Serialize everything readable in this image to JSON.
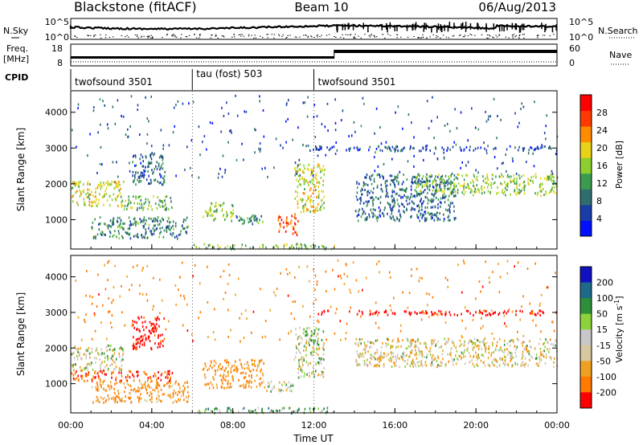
{
  "header": {
    "station": "Blackstone (fitACF)",
    "beam": "Beam 10",
    "date": "06/Aug/2013"
  },
  "top_panels": {
    "nsky_label": "N.Sky",
    "nsearch_label": "N.Search",
    "freq_label_1": "Freq.",
    "freq_label_2": "[MHz]",
    "nave_label": "Nave",
    "cpid_label": "CPID",
    "log_ticks_left": [
      "10^5",
      "10^0"
    ],
    "log_ticks_right": [
      "10^5",
      "10^0"
    ],
    "freq_ticks": [
      "18",
      "8"
    ],
    "nave_ticks": [
      "60",
      "0"
    ]
  },
  "cpid_segments": [
    {
      "start_hour": 0.0,
      "end_hour": 6.0,
      "label": "twofsound 3501"
    },
    {
      "start_hour": 6.0,
      "end_hour": 12.0,
      "label": "tau (fost) 503"
    },
    {
      "start_hour": 12.0,
      "end_hour": 24.0,
      "label": "twofsound 3501"
    }
  ],
  "chart_data": [
    {
      "type": "heatmap",
      "name": "power",
      "xlabel": "Time UT",
      "ylabel": "Slant Range [km]",
      "xlim": [
        0,
        24
      ],
      "ylim": [
        180,
        4600
      ],
      "x_ticks": [
        "00:00",
        "04:00",
        "08:00",
        "12:00",
        "16:00",
        "20:00",
        "00:00"
      ],
      "y_ticks": [
        1000,
        2000,
        3000,
        4000
      ],
      "colorbar_label": "Power [dB]",
      "colorbar_ticks": [
        4,
        8,
        12,
        16,
        20,
        24,
        28
      ],
      "colorbar_range": [
        0,
        32
      ],
      "colors": [
        "#0010ff",
        "#1a3ca8",
        "#2f6e6e",
        "#3a9a50",
        "#8ccf2e",
        "#e8d21a",
        "#ff8c00",
        "#ff3a00",
        "#ff0000"
      ],
      "scatter_regions": [
        {
          "t0": 0.0,
          "t1": 2.6,
          "r0": 1400,
          "r1": 2100,
          "p": 18
        },
        {
          "t0": 2.6,
          "t1": 5.0,
          "r0": 1300,
          "r1": 1700,
          "p": 14
        },
        {
          "t0": 1.0,
          "t1": 5.8,
          "r0": 500,
          "r1": 1100,
          "p": 10
        },
        {
          "t0": 3.0,
          "t1": 4.6,
          "r0": 2000,
          "r1": 2900,
          "p": 8
        },
        {
          "t0": 6.5,
          "t1": 8.0,
          "r0": 1000,
          "r1": 1500,
          "p": 16
        },
        {
          "t0": 8.0,
          "t1": 9.5,
          "r0": 900,
          "r1": 1200,
          "p": 10
        },
        {
          "t0": 10.2,
          "t1": 11.2,
          "r0": 600,
          "r1": 1200,
          "p": 26
        },
        {
          "t0": 11.0,
          "t1": 12.5,
          "r0": 1200,
          "r1": 2600,
          "p": 18
        },
        {
          "t0": 6.0,
          "t1": 13.0,
          "r0": 200,
          "r1": 350,
          "p": 14
        },
        {
          "t0": 14.0,
          "t1": 19.0,
          "r0": 1000,
          "r1": 2300,
          "p": 8
        },
        {
          "t0": 17.0,
          "t1": 24.0,
          "r0": 1700,
          "r1": 2300,
          "p": 16
        },
        {
          "t0": 12.0,
          "t1": 24.0,
          "r0": 2950,
          "r1": 3080,
          "p": 6
        },
        {
          "t0": 0.0,
          "t1": 24.0,
          "r0": 2200,
          "r1": 4500,
          "p": 6
        }
      ]
    },
    {
      "type": "heatmap",
      "name": "velocity",
      "xlabel": "Time UT",
      "ylabel": "Slant Range [km]",
      "xlim": [
        0,
        24
      ],
      "ylim": [
        180,
        4600
      ],
      "x_ticks": [
        "00:00",
        "04:00",
        "08:00",
        "12:00",
        "16:00",
        "20:00",
        "00:00"
      ],
      "y_ticks": [
        1000,
        2000,
        3000,
        4000
      ],
      "colorbar_label": "Velocity [m s^-1]",
      "colorbar_ticks": [
        "200",
        "100",
        "50",
        "15",
        "-15",
        "-50",
        "-100",
        "-200"
      ],
      "colors": [
        "#1010c0",
        "#1f6a8a",
        "#2e8f3a",
        "#8cd23a",
        "#c8c8c8",
        "#d8c8a0",
        "#f0a020",
        "#ff7a00",
        "#ff0000"
      ],
      "scatter_regions": [
        {
          "t0": 0.0,
          "t1": 2.6,
          "r0": 1400,
          "r1": 2100,
          "v": 0
        },
        {
          "t0": 0.0,
          "t1": 5.0,
          "r0": 1100,
          "r1": 1400,
          "v": -150
        },
        {
          "t0": 1.0,
          "t1": 5.8,
          "r0": 500,
          "r1": 1100,
          "v": -80
        },
        {
          "t0": 3.0,
          "t1": 4.6,
          "r0": 2000,
          "r1": 2900,
          "v": -200
        },
        {
          "t0": 6.5,
          "t1": 9.5,
          "r0": 900,
          "r1": 1700,
          "v": -80
        },
        {
          "t0": 9.5,
          "t1": 11.0,
          "r0": 800,
          "r1": 1100,
          "v": 0
        },
        {
          "t0": 11.0,
          "t1": 12.5,
          "r0": 1200,
          "r1": 2600,
          "v": 0
        },
        {
          "t0": 6.0,
          "t1": 13.0,
          "r0": 200,
          "r1": 350,
          "v": 40
        },
        {
          "t0": 14.0,
          "t1": 24.0,
          "r0": 1500,
          "r1": 2300,
          "v": -20
        },
        {
          "t0": 12.0,
          "t1": 24.0,
          "r0": 2950,
          "r1": 3080,
          "v": -200
        },
        {
          "t0": 0.0,
          "t1": 24.0,
          "r0": 2200,
          "r1": 4500,
          "v": -100
        }
      ]
    }
  ]
}
